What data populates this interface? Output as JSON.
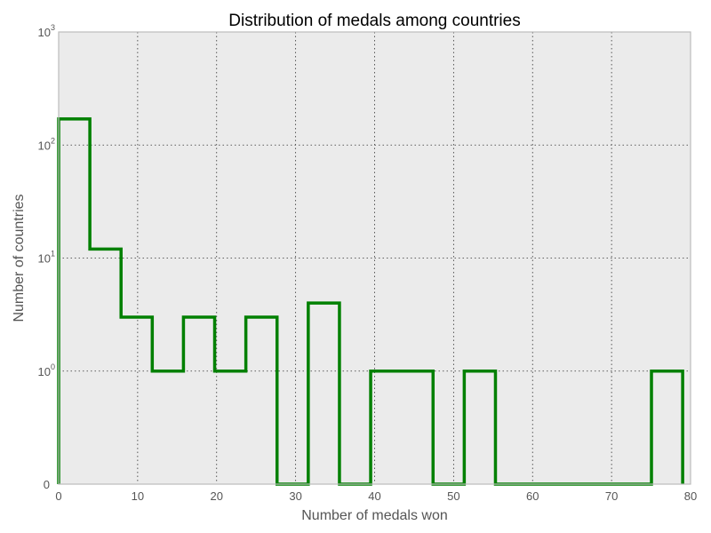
{
  "chart_data": {
    "type": "step",
    "title": "Distribution of medals among countries",
    "xlabel": "Number of medals won",
    "ylabel": "Number of countries",
    "x_scale": "linear",
    "y_scale": "symlog",
    "xlim": [
      0,
      80
    ],
    "ylim": [
      0,
      1000
    ],
    "x_ticks": [
      "0",
      "10",
      "20",
      "30",
      "40",
      "50",
      "60",
      "70",
      "80"
    ],
    "y_ticks": [
      {
        "base": "0",
        "exp": ""
      },
      {
        "base": "10",
        "exp": "0"
      },
      {
        "base": "10",
        "exp": "1"
      },
      {
        "base": "10",
        "exp": "2"
      },
      {
        "base": "10",
        "exp": "3"
      }
    ],
    "grid": true,
    "grid_style": "dotted",
    "line_color": "#008000",
    "background_color": "#ebebeb",
    "bin_edges": [
      0,
      3.95,
      7.9,
      11.85,
      15.8,
      19.75,
      23.7,
      27.65,
      31.6,
      35.55,
      39.5,
      43.45,
      47.4,
      51.35,
      55.3,
      59.25,
      63.2,
      67.15,
      71.1,
      75.05,
      79
    ],
    "counts": [
      170,
      12,
      3,
      1,
      3,
      1,
      3,
      0,
      4,
      0,
      1,
      1,
      0,
      1,
      0,
      0,
      0,
      0,
      0,
      1
    ]
  }
}
